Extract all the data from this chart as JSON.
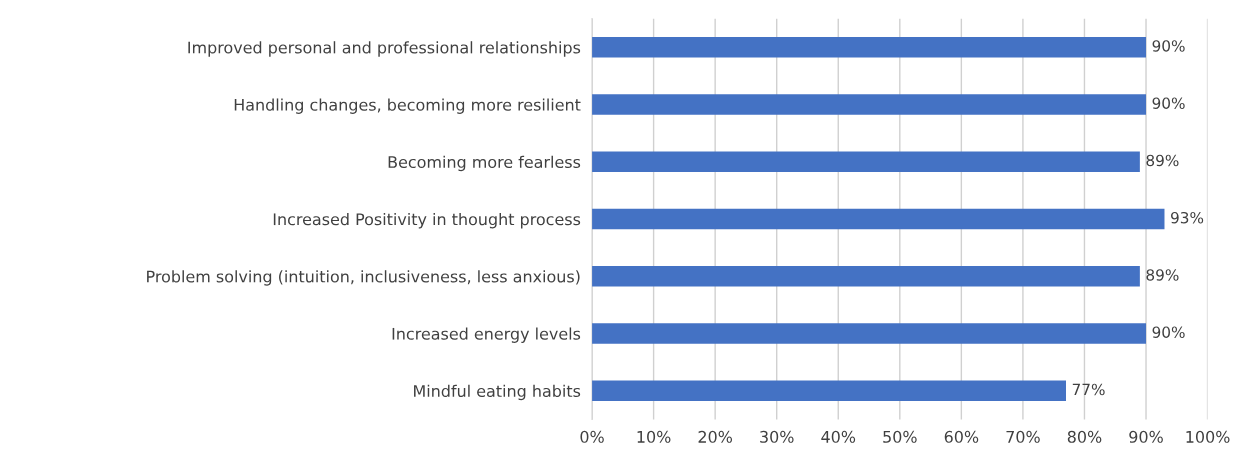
{
  "chart_data": {
    "type": "bar",
    "orientation": "horizontal",
    "categories": [
      "Improved personal and professional relationships",
      "Handling changes, becoming more resilient",
      "Becoming more fearless",
      "Increased Positivity in thought process",
      "Problem solving (intuition, inclusiveness, less anxious)",
      "Increased energy levels",
      "Mindful eating habits"
    ],
    "values": [
      90,
      90,
      89,
      93,
      89,
      90,
      77
    ],
    "value_labels": [
      "90%",
      "90%",
      "89%",
      "93%",
      "89%",
      "90%",
      "77%"
    ],
    "color": "#4472c4",
    "xlim": [
      0,
      100
    ],
    "xticks": [
      {
        "value": 0,
        "label": "0%"
      },
      {
        "value": 10,
        "label": "10%"
      },
      {
        "value": 20,
        "label": "20%"
      },
      {
        "value": 30,
        "label": "30%"
      },
      {
        "value": 40,
        "label": "40%"
      },
      {
        "value": 50,
        "label": "50%"
      },
      {
        "value": 60,
        "label": "60%"
      },
      {
        "value": 70,
        "label": "70%"
      },
      {
        "value": 80,
        "label": "80%"
      },
      {
        "value": 90,
        "label": "90%"
      },
      {
        "value": 100,
        "label": "100%"
      }
    ],
    "grid": "x"
  }
}
